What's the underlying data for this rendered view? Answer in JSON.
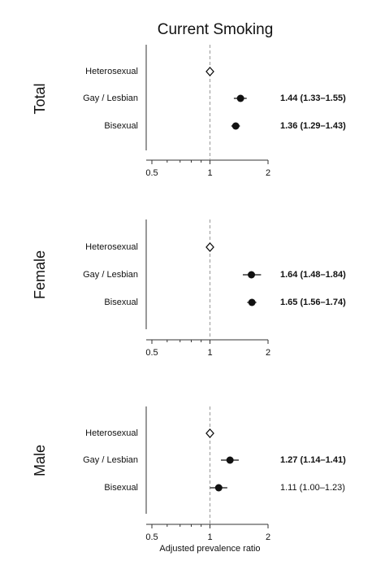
{
  "chart_data": [
    {
      "type": "forest",
      "title": "Current Smoking",
      "panel": "Total",
      "categories": [
        "Heterosexual",
        "Gay / Lesbian",
        "Bisexual"
      ],
      "values": [
        1,
        1.44,
        1.36
      ],
      "lower": [
        null,
        1.33,
        1.29
      ],
      "upper": [
        null,
        1.55,
        1.43
      ],
      "value_labels": [
        null,
        "1.44 (1.33–1.55)",
        "1.36 (1.29–1.43)"
      ],
      "value_labels_bold": [
        null,
        true,
        true
      ],
      "reference": 1,
      "xlim": [
        0.5,
        2
      ],
      "xticks": [
        0.5,
        1,
        2
      ],
      "minor_xticks": [
        0.6,
        0.7,
        0.8,
        0.9
      ],
      "xscale": "log",
      "color": "#111"
    },
    {
      "type": "forest",
      "panel": "Female",
      "categories": [
        "Heterosexual",
        "Gay / Lesbian",
        "Bisexual"
      ],
      "values": [
        1,
        1.64,
        1.65
      ],
      "lower": [
        null,
        1.48,
        1.56
      ],
      "upper": [
        null,
        1.84,
        1.74
      ],
      "value_labels": [
        null,
        "1.64 (1.48–1.84)",
        "1.65 (1.56–1.74)"
      ],
      "value_labels_bold": [
        null,
        true,
        true
      ],
      "reference": 1,
      "xlim": [
        0.5,
        2
      ],
      "xticks": [
        0.5,
        1,
        2
      ],
      "minor_xticks": [
        0.6,
        0.7,
        0.8,
        0.9
      ],
      "xscale": "log",
      "color": "#111"
    },
    {
      "type": "forest",
      "panel": "Male",
      "xlabel": "Adjusted prevalence ratio",
      "categories": [
        "Heterosexual",
        "Gay / Lesbian",
        "Bisexual"
      ],
      "values": [
        1,
        1.27,
        1.11
      ],
      "lower": [
        null,
        1.14,
        1.0
      ],
      "upper": [
        null,
        1.41,
        1.23
      ],
      "value_labels": [
        null,
        "1.27  (1.14–1.41)",
        "1.11 (1.00–1.23)"
      ],
      "value_labels_bold": [
        null,
        true,
        false
      ],
      "reference": 1,
      "xlim": [
        0.5,
        2
      ],
      "xticks": [
        0.5,
        1,
        2
      ],
      "minor_xticks": [
        0.6,
        0.7,
        0.8,
        0.9
      ],
      "xscale": "log",
      "color": "#111"
    }
  ]
}
